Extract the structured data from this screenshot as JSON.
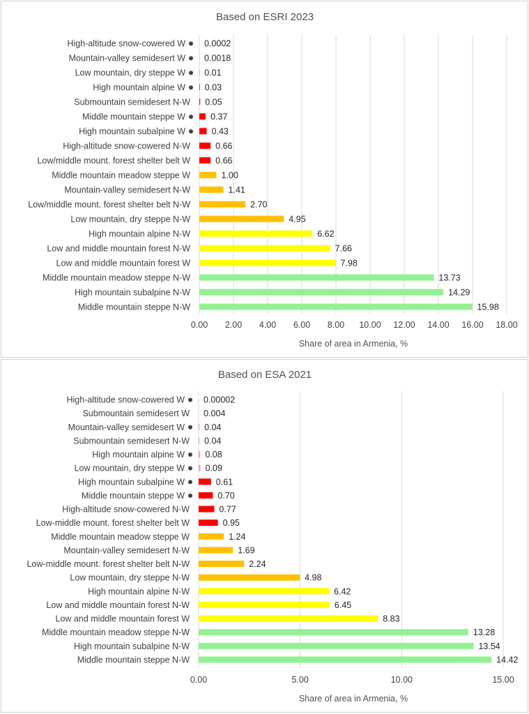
{
  "chart_data": [
    {
      "type": "bar",
      "orientation": "horizontal",
      "title": "Based on ESRI 2023",
      "xlabel": "Share of area in Armenia, %",
      "xlim": [
        0,
        18
      ],
      "xticks": [
        "0.00",
        "2.00",
        "4.00",
        "6.00",
        "8.00",
        "10.00",
        "12.00",
        "14.00",
        "16.00",
        "18.00"
      ],
      "grid": true,
      "categories": [
        "High-altitude snow-cowered W",
        "Mountain-valley semidesert W",
        "Low mountain, dry steppe W",
        "High mountain alpine W",
        "Submountain semidesert N-W",
        "Middle mountain steppe W",
        "High mountain subalpine W",
        "High-altitude snow-cowered N-W",
        "Low/middle mount. forest shelter belt W",
        "Middle mountain meadow steppe W",
        "Mountain-valley semidesert N-W",
        "Low/middle mount. forest shelter belt N-W",
        "Low mountain, dry steppe N-W",
        "High mountain alpine N-W",
        "Low and middle mountain forest N-W",
        "Low and middle mountain forest W",
        "Middle mountain meadow steppe N-W",
        "High mountain subalpine N-W",
        "Middle mountain steppe N-W"
      ],
      "values": [
        0.0002,
        0.0018,
        0.01,
        0.03,
        0.05,
        0.37,
        0.43,
        0.66,
        0.66,
        1.0,
        1.41,
        2.7,
        4.95,
        6.62,
        7.66,
        7.98,
        13.73,
        14.29,
        15.98
      ],
      "value_labels": [
        "0.0002",
        "0.0018",
        "0.01",
        "0.03",
        "0.05",
        "0.37",
        "0.43",
        "0.66",
        "0.66",
        "1.00",
        "1.41",
        "2.70",
        "4.95",
        "6.62",
        "7.66",
        "7.98",
        "13.73",
        "14.29",
        "15.98"
      ],
      "markers": [
        true,
        true,
        true,
        true,
        false,
        true,
        true,
        false,
        false,
        false,
        false,
        false,
        false,
        false,
        false,
        false,
        false,
        false,
        false
      ],
      "colors": [
        "#ff0000",
        "#ff0000",
        "#ff0000",
        "#ff0000",
        "#ff0000",
        "#ff0000",
        "#ff0000",
        "#ff0000",
        "#ff0000",
        "#ffc000",
        "#ffc000",
        "#ffc000",
        "#ffc000",
        "#ffff00",
        "#ffff00",
        "#ffff00",
        "#92f192",
        "#92f192",
        "#92f192"
      ]
    },
    {
      "type": "bar",
      "orientation": "horizontal",
      "title": "Based on ESA 2021",
      "xlabel": "Share of area in Armenia, %",
      "xlim": [
        0,
        15
      ],
      "xticks": [
        "0.00",
        "5.00",
        "10.00",
        "15.00"
      ],
      "grid": true,
      "categories": [
        "High-altitude snow-cowered W",
        "Submountain semidesert W",
        "Mountain-valley semidesert W",
        "Submountain semidesert N-W",
        "High mountain alpine W",
        "Low mountain, dry steppe W",
        "High mountain subalpine W",
        "Middle mountain steppe W",
        "High-altitude snow-cowered N-W",
        "Low-middle mount.  forest shelter belt W",
        "Middle mountain meadow steppe W",
        "Mountain-valley semidesert N-W",
        "Low-middle mount. forest shelter belt N-W",
        "Low mountain, dry steppe N-W",
        "High mountain alpine N-W",
        "Low and middle mountain forest N-W",
        "Low and middle mountain forest W",
        "Middle mountain meadow steppe N-W",
        "High mountain subalpine N-W",
        "Middle mountain steppe N-W"
      ],
      "values": [
        2e-05,
        0.004,
        0.04,
        0.04,
        0.08,
        0.09,
        0.61,
        0.7,
        0.77,
        0.95,
        1.24,
        1.69,
        2.24,
        4.98,
        6.42,
        6.45,
        8.83,
        13.28,
        13.54,
        14.42
      ],
      "value_labels": [
        "0.00002",
        "0.004",
        "0.04",
        "0.04",
        "0.08",
        "0.09",
        "0.61",
        "0.70",
        "0.77",
        "0.95",
        "1.24",
        "1.69",
        "2.24",
        "4.98",
        "6.42",
        "6.45",
        "8.83",
        "13.28",
        "13.54",
        "14.42"
      ],
      "markers": [
        true,
        false,
        true,
        false,
        true,
        true,
        true,
        true,
        false,
        false,
        false,
        false,
        false,
        false,
        false,
        false,
        false,
        false,
        false,
        false
      ],
      "colors": [
        "#ff9fb0",
        "#ff9fb0",
        "#ff9fb0",
        "#ff9fb0",
        "#ff9fb0",
        "#ff9fb0",
        "#ff0000",
        "#ff0000",
        "#ff0000",
        "#ff0000",
        "#ffc000",
        "#ffc000",
        "#ffc000",
        "#ffc000",
        "#ffff00",
        "#ffff00",
        "#ffff00",
        "#92f192",
        "#92f192",
        "#92f192"
      ]
    }
  ]
}
